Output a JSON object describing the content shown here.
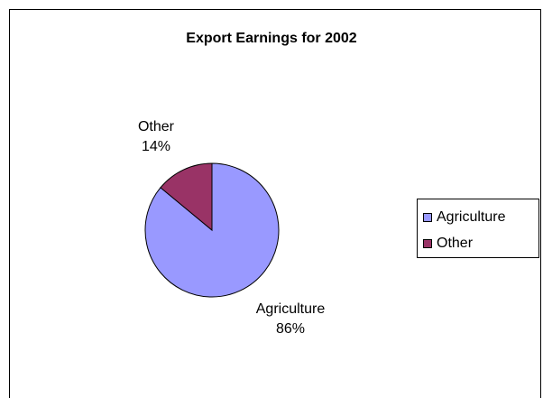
{
  "chart_data": {
    "type": "pie",
    "title": "Export Earnings for 2002",
    "categories": [
      "Agriculture",
      "Other"
    ],
    "values": [
      86,
      14
    ],
    "value_labels": [
      "86%",
      "14%"
    ],
    "colors": [
      "#9999FF",
      "#993366"
    ],
    "legend": {
      "placement": "right",
      "entries": [
        "Agriculture",
        "Other"
      ]
    }
  }
}
